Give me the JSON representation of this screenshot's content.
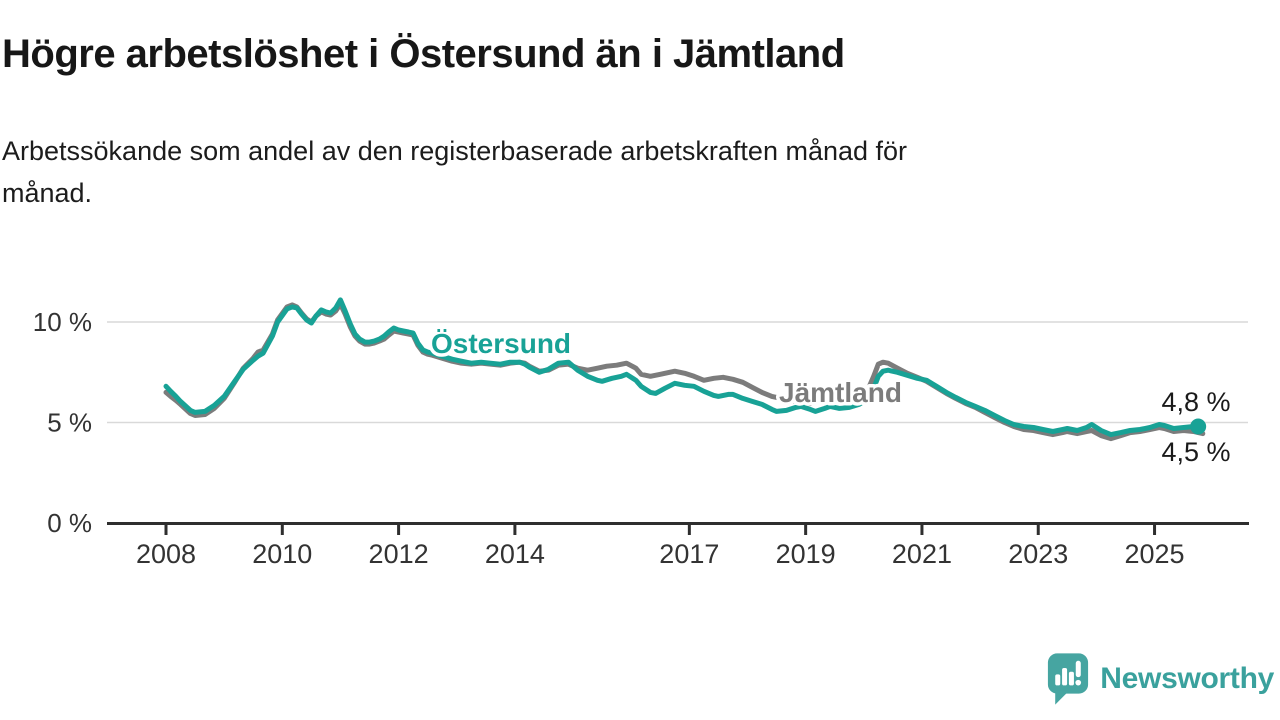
{
  "header": {
    "title": "Högre arbetslöshet i Östersund än i Jämtland",
    "subtitle": "Arbetssökande som andel av den registerbaserade arbetskraften månad för månad."
  },
  "chart_data": {
    "type": "line",
    "title": "Högre arbetslöshet i Östersund än i Jämtland",
    "subtitle": "Arbetssökande som andel av den registerbaserade arbetskraften månad för månad.",
    "unit": "percent of registered labour force",
    "grid": "horizontal-only",
    "legend_position": "inline-labels-on-lines",
    "xlim": [
      2008,
      2026.6
    ],
    "ylim": [
      0,
      11.6
    ],
    "x_ticks": [
      "2008",
      "2010",
      "2012",
      "2014",
      "2017",
      "2019",
      "2021",
      "2023",
      "2025"
    ],
    "y_ticks": [
      {
        "value": 0,
        "label": "0 %"
      },
      {
        "value": 5,
        "label": "5 %"
      },
      {
        "value": 10,
        "label": "10 %"
      }
    ],
    "series": [
      {
        "name": "Jämtland",
        "color": "#7c7c7c",
        "end_label": "4,5 %",
        "end_value": 4.5,
        "end_dot": false,
        "points": [
          [
            2008.0,
            6.5
          ],
          [
            2008.08,
            6.3
          ],
          [
            2008.17,
            6.1
          ],
          [
            2008.25,
            5.9
          ],
          [
            2008.42,
            5.45
          ],
          [
            2008.5,
            5.35
          ],
          [
            2008.67,
            5.4
          ],
          [
            2008.83,
            5.7
          ],
          [
            2009.0,
            6.2
          ],
          [
            2009.17,
            6.95
          ],
          [
            2009.33,
            7.7
          ],
          [
            2009.5,
            8.2
          ],
          [
            2009.58,
            8.5
          ],
          [
            2009.67,
            8.6
          ],
          [
            2009.83,
            9.4
          ],
          [
            2009.92,
            10.1
          ],
          [
            2010.08,
            10.75
          ],
          [
            2010.17,
            10.85
          ],
          [
            2010.25,
            10.75
          ],
          [
            2010.33,
            10.45
          ],
          [
            2010.42,
            10.15
          ],
          [
            2010.5,
            10.0
          ],
          [
            2010.58,
            10.3
          ],
          [
            2010.67,
            10.5
          ],
          [
            2010.75,
            10.4
          ],
          [
            2010.83,
            10.35
          ],
          [
            2010.92,
            10.55
          ],
          [
            2011.0,
            10.9
          ],
          [
            2011.08,
            10.4
          ],
          [
            2011.17,
            9.75
          ],
          [
            2011.25,
            9.3
          ],
          [
            2011.33,
            9.05
          ],
          [
            2011.42,
            8.9
          ],
          [
            2011.5,
            8.9
          ],
          [
            2011.58,
            8.95
          ],
          [
            2011.67,
            9.05
          ],
          [
            2011.75,
            9.15
          ],
          [
            2011.83,
            9.35
          ],
          [
            2011.92,
            9.55
          ],
          [
            2012.0,
            9.5
          ],
          [
            2012.08,
            9.45
          ],
          [
            2012.17,
            9.4
          ],
          [
            2012.25,
            9.35
          ],
          [
            2012.33,
            8.85
          ],
          [
            2012.42,
            8.5
          ],
          [
            2012.5,
            8.4
          ],
          [
            2012.58,
            8.35
          ],
          [
            2012.75,
            8.2
          ],
          [
            2012.92,
            8.05
          ],
          [
            2013.08,
            7.95
          ],
          [
            2013.25,
            7.9
          ],
          [
            2013.42,
            7.95
          ],
          [
            2013.58,
            7.9
          ],
          [
            2013.75,
            7.85
          ],
          [
            2013.92,
            7.95
          ],
          [
            2014.08,
            8.0
          ],
          [
            2014.17,
            7.95
          ],
          [
            2014.25,
            7.8
          ],
          [
            2014.42,
            7.55
          ],
          [
            2014.58,
            7.6
          ],
          [
            2014.75,
            7.85
          ],
          [
            2014.92,
            7.9
          ],
          [
            2015.08,
            7.7
          ],
          [
            2015.25,
            7.6
          ],
          [
            2015.42,
            7.7
          ],
          [
            2015.58,
            7.8
          ],
          [
            2015.75,
            7.85
          ],
          [
            2015.92,
            7.95
          ],
          [
            2016.08,
            7.7
          ],
          [
            2016.17,
            7.4
          ],
          [
            2016.33,
            7.3
          ],
          [
            2016.5,
            7.4
          ],
          [
            2016.58,
            7.45
          ],
          [
            2016.75,
            7.55
          ],
          [
            2016.92,
            7.45
          ],
          [
            2017.08,
            7.3
          ],
          [
            2017.25,
            7.1
          ],
          [
            2017.42,
            7.2
          ],
          [
            2017.58,
            7.25
          ],
          [
            2017.75,
            7.15
          ],
          [
            2017.92,
            7.0
          ],
          [
            2018.08,
            6.75
          ],
          [
            2018.25,
            6.5
          ],
          [
            2018.42,
            6.3
          ],
          [
            2018.58,
            6.2
          ],
          [
            2018.75,
            6.1
          ],
          [
            2018.92,
            6.0
          ],
          [
            2019.08,
            5.95
          ],
          [
            2019.25,
            6.1
          ],
          [
            2019.42,
            6.2
          ],
          [
            2019.58,
            6.15
          ],
          [
            2019.75,
            6.1
          ],
          [
            2019.92,
            6.3
          ],
          [
            2020.08,
            6.7
          ],
          [
            2020.17,
            7.3
          ],
          [
            2020.25,
            7.9
          ],
          [
            2020.33,
            8.0
          ],
          [
            2020.42,
            7.95
          ],
          [
            2020.58,
            7.7
          ],
          [
            2020.75,
            7.45
          ],
          [
            2020.92,
            7.25
          ],
          [
            2021.08,
            7.05
          ],
          [
            2021.25,
            6.75
          ],
          [
            2021.42,
            6.45
          ],
          [
            2021.58,
            6.2
          ],
          [
            2021.75,
            5.95
          ],
          [
            2021.92,
            5.75
          ],
          [
            2022.08,
            5.5
          ],
          [
            2022.25,
            5.25
          ],
          [
            2022.42,
            5.0
          ],
          [
            2022.58,
            4.8
          ],
          [
            2022.75,
            4.65
          ],
          [
            2022.92,
            4.6
          ],
          [
            2023.08,
            4.5
          ],
          [
            2023.25,
            4.4
          ],
          [
            2023.42,
            4.5
          ],
          [
            2023.5,
            4.55
          ],
          [
            2023.67,
            4.45
          ],
          [
            2023.83,
            4.55
          ],
          [
            2023.92,
            4.6
          ],
          [
            2024.08,
            4.35
          ],
          [
            2024.25,
            4.2
          ],
          [
            2024.42,
            4.35
          ],
          [
            2024.58,
            4.5
          ],
          [
            2024.75,
            4.55
          ],
          [
            2024.92,
            4.65
          ],
          [
            2025.08,
            4.75
          ],
          [
            2025.17,
            4.7
          ],
          [
            2025.33,
            4.55
          ],
          [
            2025.5,
            4.6
          ],
          [
            2025.67,
            4.55
          ],
          [
            2025.75,
            4.5
          ],
          [
            2025.83,
            4.45
          ]
        ]
      },
      {
        "name": "Östersund",
        "color": "#18a296",
        "end_label": "4,8 %",
        "end_value": 4.8,
        "end_dot": true,
        "points": [
          [
            2008.0,
            6.8
          ],
          [
            2008.08,
            6.55
          ],
          [
            2008.17,
            6.3
          ],
          [
            2008.25,
            6.05
          ],
          [
            2008.42,
            5.6
          ],
          [
            2008.5,
            5.5
          ],
          [
            2008.67,
            5.55
          ],
          [
            2008.83,
            5.85
          ],
          [
            2009.0,
            6.3
          ],
          [
            2009.17,
            7.0
          ],
          [
            2009.33,
            7.65
          ],
          [
            2009.5,
            8.1
          ],
          [
            2009.58,
            8.3
          ],
          [
            2009.67,
            8.45
          ],
          [
            2009.83,
            9.3
          ],
          [
            2009.92,
            10.0
          ],
          [
            2010.08,
            10.65
          ],
          [
            2010.17,
            10.75
          ],
          [
            2010.25,
            10.7
          ],
          [
            2010.33,
            10.4
          ],
          [
            2010.42,
            10.1
          ],
          [
            2010.5,
            9.95
          ],
          [
            2010.58,
            10.3
          ],
          [
            2010.67,
            10.6
          ],
          [
            2010.75,
            10.5
          ],
          [
            2010.83,
            10.45
          ],
          [
            2010.92,
            10.7
          ],
          [
            2011.0,
            11.1
          ],
          [
            2011.08,
            10.55
          ],
          [
            2011.17,
            9.9
          ],
          [
            2011.25,
            9.4
          ],
          [
            2011.33,
            9.15
          ],
          [
            2011.42,
            9.0
          ],
          [
            2011.5,
            9.0
          ],
          [
            2011.58,
            9.05
          ],
          [
            2011.67,
            9.15
          ],
          [
            2011.75,
            9.3
          ],
          [
            2011.83,
            9.5
          ],
          [
            2011.92,
            9.7
          ],
          [
            2012.0,
            9.6
          ],
          [
            2012.08,
            9.55
          ],
          [
            2012.17,
            9.5
          ],
          [
            2012.25,
            9.45
          ],
          [
            2012.33,
            8.95
          ],
          [
            2012.42,
            8.6
          ],
          [
            2012.5,
            8.5
          ],
          [
            2012.58,
            8.45
          ],
          [
            2012.75,
            8.3
          ],
          [
            2012.92,
            8.15
          ],
          [
            2013.08,
            8.05
          ],
          [
            2013.25,
            7.95
          ],
          [
            2013.42,
            8.0
          ],
          [
            2013.58,
            7.95
          ],
          [
            2013.75,
            7.9
          ],
          [
            2013.92,
            8.0
          ],
          [
            2014.08,
            8.0
          ],
          [
            2014.17,
            7.9
          ],
          [
            2014.25,
            7.75
          ],
          [
            2014.42,
            7.5
          ],
          [
            2014.58,
            7.65
          ],
          [
            2014.75,
            7.95
          ],
          [
            2014.92,
            8.0
          ],
          [
            2015.08,
            7.6
          ],
          [
            2015.25,
            7.3
          ],
          [
            2015.42,
            7.1
          ],
          [
            2015.5,
            7.05
          ],
          [
            2015.67,
            7.2
          ],
          [
            2015.83,
            7.3
          ],
          [
            2015.92,
            7.4
          ],
          [
            2016.08,
            7.1
          ],
          [
            2016.17,
            6.8
          ],
          [
            2016.33,
            6.5
          ],
          [
            2016.42,
            6.45
          ],
          [
            2016.58,
            6.7
          ],
          [
            2016.75,
            6.95
          ],
          [
            2016.92,
            6.85
          ],
          [
            2017.08,
            6.8
          ],
          [
            2017.25,
            6.55
          ],
          [
            2017.42,
            6.35
          ],
          [
            2017.5,
            6.3
          ],
          [
            2017.67,
            6.4
          ],
          [
            2017.75,
            6.4
          ],
          [
            2017.92,
            6.2
          ],
          [
            2018.08,
            6.05
          ],
          [
            2018.25,
            5.9
          ],
          [
            2018.42,
            5.65
          ],
          [
            2018.5,
            5.55
          ],
          [
            2018.67,
            5.6
          ],
          [
            2018.83,
            5.75
          ],
          [
            2018.92,
            5.8
          ],
          [
            2019.08,
            5.65
          ],
          [
            2019.17,
            5.55
          ],
          [
            2019.33,
            5.7
          ],
          [
            2019.42,
            5.8
          ],
          [
            2019.58,
            5.7
          ],
          [
            2019.75,
            5.75
          ],
          [
            2019.92,
            5.9
          ],
          [
            2020.08,
            6.2
          ],
          [
            2020.17,
            6.7
          ],
          [
            2020.25,
            7.3
          ],
          [
            2020.33,
            7.55
          ],
          [
            2020.42,
            7.6
          ],
          [
            2020.58,
            7.5
          ],
          [
            2020.75,
            7.35
          ],
          [
            2020.92,
            7.2
          ],
          [
            2021.08,
            7.1
          ],
          [
            2021.25,
            6.8
          ],
          [
            2021.42,
            6.5
          ],
          [
            2021.58,
            6.25
          ],
          [
            2021.75,
            6.0
          ],
          [
            2021.92,
            5.8
          ],
          [
            2022.08,
            5.6
          ],
          [
            2022.25,
            5.35
          ],
          [
            2022.42,
            5.1
          ],
          [
            2022.58,
            4.9
          ],
          [
            2022.75,
            4.8
          ],
          [
            2022.92,
            4.75
          ],
          [
            2023.08,
            4.65
          ],
          [
            2023.25,
            4.55
          ],
          [
            2023.42,
            4.65
          ],
          [
            2023.5,
            4.7
          ],
          [
            2023.67,
            4.6
          ],
          [
            2023.83,
            4.75
          ],
          [
            2023.92,
            4.9
          ],
          [
            2024.08,
            4.6
          ],
          [
            2024.25,
            4.4
          ],
          [
            2024.42,
            4.5
          ],
          [
            2024.58,
            4.6
          ],
          [
            2024.75,
            4.65
          ],
          [
            2024.92,
            4.75
          ],
          [
            2025.08,
            4.9
          ],
          [
            2025.17,
            4.85
          ],
          [
            2025.33,
            4.7
          ],
          [
            2025.5,
            4.75
          ],
          [
            2025.67,
            4.8
          ],
          [
            2025.75,
            4.8
          ]
        ]
      }
    ]
  },
  "colors": {
    "ostersund": "#18a296",
    "jamtland": "#7c7c7c",
    "grid": "#d9d9d9",
    "axis": "#2e2e2e",
    "tick_text": "#333333",
    "brand": "#3aa19d"
  },
  "footer": {
    "brand": "Newsworthy"
  }
}
